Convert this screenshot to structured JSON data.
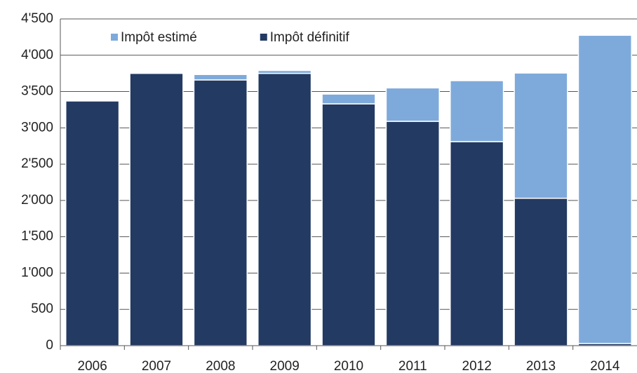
{
  "chart_data": {
    "type": "stacked_bar",
    "categories": [
      "2006",
      "2007",
      "2008",
      "2009",
      "2010",
      "2011",
      "2012",
      "2013",
      "2014"
    ],
    "series": [
      {
        "name": "Impôt définitif",
        "color": "#233a63",
        "values": [
          3370,
          3750,
          3660,
          3750,
          3330,
          3090,
          2810,
          2030,
          30
        ]
      },
      {
        "name": "Impôt estimé",
        "color": "#7eaadb",
        "values": [
          0,
          0,
          75,
          40,
          135,
          460,
          840,
          1725,
          4245
        ]
      }
    ],
    "ylim": [
      0,
      4500
    ],
    "yticks": [
      0,
      500,
      {
        "value": 1000,
        "label": "1'000"
      },
      {
        "value": 1500,
        "label": "1'500"
      },
      {
        "value": 2000,
        "label": "2'000"
      },
      {
        "value": 2500,
        "label": "2'500"
      },
      {
        "value": 3000,
        "label": "3'000"
      },
      {
        "value": 3500,
        "label": "3'500"
      },
      {
        "value": 4000,
        "label": "4'000"
      },
      {
        "value": 4500,
        "label": "4'500"
      }
    ],
    "grid": true,
    "legend": "top-left"
  }
}
